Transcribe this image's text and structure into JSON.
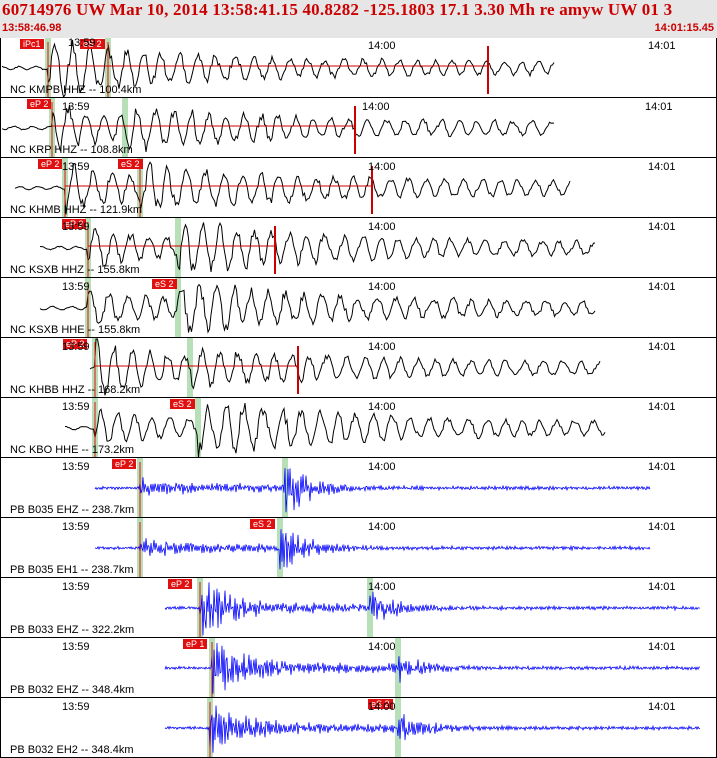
{
  "header": {
    "title": "60714976 UW Mar 10, 2014 13:58:41.15    40.8282 -125.1803 17.1 3.30 Mh re amyw UW 01   3",
    "start_time": "13:58:46.98",
    "end_time": "14:01:15.45"
  },
  "time_ticks": [
    "13:59",
    "14:00",
    "14:01"
  ],
  "colors": {
    "title": "#cc0000",
    "velocity_trace": "#000000",
    "strain_trace": "#0000ff",
    "pick": "#e01010",
    "window": "#b8e0b8",
    "background_header": "#e6e6e6"
  },
  "channels": [
    {
      "label": "NC KMPB HHZ -- 100.4km",
      "color": "black",
      "picks": [
        "iPc1",
        "eS 2"
      ]
    },
    {
      "label": "NC KRP HHZ -- 108.8km",
      "color": "black",
      "picks": [
        "eP 2"
      ]
    },
    {
      "label": "NC KHMB HHZ -- 121.9km",
      "color": "black",
      "picks": [
        "eP 2",
        "eS 2"
      ]
    },
    {
      "label": "NC KSXB HHZ -- 155.8km",
      "color": "black",
      "picks": [
        "eP 2"
      ]
    },
    {
      "label": "NC KSXB HHE -- 155.8km",
      "color": "black",
      "picks": [
        "eS 2"
      ]
    },
    {
      "label": "NC KHBB HHZ -- 168.2km",
      "color": "black",
      "picks": [
        "eP 2"
      ]
    },
    {
      "label": "NC KBO HHE -- 173.2km",
      "color": "black",
      "picks": [
        "eS 2"
      ]
    },
    {
      "label": "PB B035 EHZ -- 238.7km",
      "color": "blue",
      "picks": [
        "eP 2"
      ]
    },
    {
      "label": "PB B035 EH1 -- 238.7km",
      "color": "blue",
      "picks": [
        "eS 2"
      ]
    },
    {
      "label": "PB B033 EHZ -- 322.2km",
      "color": "blue",
      "picks": [
        "eP 2"
      ]
    },
    {
      "label": "PB B032 EHZ -- 348.4km",
      "color": "blue",
      "picks": [
        "eP 1"
      ]
    },
    {
      "label": "PB B032 EH2 -- 348.4km",
      "color": "blue",
      "picks": [
        "eS 2"
      ]
    }
  ]
}
